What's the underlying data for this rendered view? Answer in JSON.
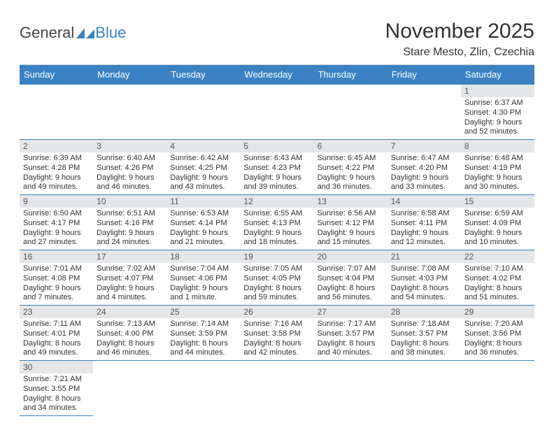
{
  "logo": {
    "word1": "General",
    "word2": "Blue"
  },
  "title": "November 2025",
  "location": "Stare Mesto, Zlin, Czechia",
  "header_bg": "#3b82c4",
  "row_divider_color": "#3b82c4",
  "daynum_bg": "#e4e6e8",
  "weekdays": [
    "Sunday",
    "Monday",
    "Tuesday",
    "Wednesday",
    "Thursday",
    "Friday",
    "Saturday"
  ],
  "weeks": [
    [
      null,
      null,
      null,
      null,
      null,
      null,
      {
        "n": "1",
        "sr": "Sunrise: 6:37 AM",
        "ss": "Sunset: 4:30 PM",
        "dl": "Daylight: 9 hours and 52 minutes."
      }
    ],
    [
      {
        "n": "2",
        "sr": "Sunrise: 6:39 AM",
        "ss": "Sunset: 4:28 PM",
        "dl": "Daylight: 9 hours and 49 minutes."
      },
      {
        "n": "3",
        "sr": "Sunrise: 6:40 AM",
        "ss": "Sunset: 4:26 PM",
        "dl": "Daylight: 9 hours and 46 minutes."
      },
      {
        "n": "4",
        "sr": "Sunrise: 6:42 AM",
        "ss": "Sunset: 4:25 PM",
        "dl": "Daylight: 9 hours and 43 minutes."
      },
      {
        "n": "5",
        "sr": "Sunrise: 6:43 AM",
        "ss": "Sunset: 4:23 PM",
        "dl": "Daylight: 9 hours and 39 minutes."
      },
      {
        "n": "6",
        "sr": "Sunrise: 6:45 AM",
        "ss": "Sunset: 4:22 PM",
        "dl": "Daylight: 9 hours and 36 minutes."
      },
      {
        "n": "7",
        "sr": "Sunrise: 6:47 AM",
        "ss": "Sunset: 4:20 PM",
        "dl": "Daylight: 9 hours and 33 minutes."
      },
      {
        "n": "8",
        "sr": "Sunrise: 6:48 AM",
        "ss": "Sunset: 4:19 PM",
        "dl": "Daylight: 9 hours and 30 minutes."
      }
    ],
    [
      {
        "n": "9",
        "sr": "Sunrise: 6:50 AM",
        "ss": "Sunset: 4:17 PM",
        "dl": "Daylight: 9 hours and 27 minutes."
      },
      {
        "n": "10",
        "sr": "Sunrise: 6:51 AM",
        "ss": "Sunset: 4:16 PM",
        "dl": "Daylight: 9 hours and 24 minutes."
      },
      {
        "n": "11",
        "sr": "Sunrise: 6:53 AM",
        "ss": "Sunset: 4:14 PM",
        "dl": "Daylight: 9 hours and 21 minutes."
      },
      {
        "n": "12",
        "sr": "Sunrise: 6:55 AM",
        "ss": "Sunset: 4:13 PM",
        "dl": "Daylight: 9 hours and 18 minutes."
      },
      {
        "n": "13",
        "sr": "Sunrise: 6:56 AM",
        "ss": "Sunset: 4:12 PM",
        "dl": "Daylight: 9 hours and 15 minutes."
      },
      {
        "n": "14",
        "sr": "Sunrise: 6:58 AM",
        "ss": "Sunset: 4:11 PM",
        "dl": "Daylight: 9 hours and 12 minutes."
      },
      {
        "n": "15",
        "sr": "Sunrise: 6:59 AM",
        "ss": "Sunset: 4:09 PM",
        "dl": "Daylight: 9 hours and 10 minutes."
      }
    ],
    [
      {
        "n": "16",
        "sr": "Sunrise: 7:01 AM",
        "ss": "Sunset: 4:08 PM",
        "dl": "Daylight: 9 hours and 7 minutes."
      },
      {
        "n": "17",
        "sr": "Sunrise: 7:02 AM",
        "ss": "Sunset: 4:07 PM",
        "dl": "Daylight: 9 hours and 4 minutes."
      },
      {
        "n": "18",
        "sr": "Sunrise: 7:04 AM",
        "ss": "Sunset: 4:06 PM",
        "dl": "Daylight: 9 hours and 1 minute."
      },
      {
        "n": "19",
        "sr": "Sunrise: 7:05 AM",
        "ss": "Sunset: 4:05 PM",
        "dl": "Daylight: 8 hours and 59 minutes."
      },
      {
        "n": "20",
        "sr": "Sunrise: 7:07 AM",
        "ss": "Sunset: 4:04 PM",
        "dl": "Daylight: 8 hours and 56 minutes."
      },
      {
        "n": "21",
        "sr": "Sunrise: 7:08 AM",
        "ss": "Sunset: 4:03 PM",
        "dl": "Daylight: 8 hours and 54 minutes."
      },
      {
        "n": "22",
        "sr": "Sunrise: 7:10 AM",
        "ss": "Sunset: 4:02 PM",
        "dl": "Daylight: 8 hours and 51 minutes."
      }
    ],
    [
      {
        "n": "23",
        "sr": "Sunrise: 7:11 AM",
        "ss": "Sunset: 4:01 PM",
        "dl": "Daylight: 8 hours and 49 minutes."
      },
      {
        "n": "24",
        "sr": "Sunrise: 7:13 AM",
        "ss": "Sunset: 4:00 PM",
        "dl": "Daylight: 8 hours and 46 minutes."
      },
      {
        "n": "25",
        "sr": "Sunrise: 7:14 AM",
        "ss": "Sunset: 3:59 PM",
        "dl": "Daylight: 8 hours and 44 minutes."
      },
      {
        "n": "26",
        "sr": "Sunrise: 7:16 AM",
        "ss": "Sunset: 3:58 PM",
        "dl": "Daylight: 8 hours and 42 minutes."
      },
      {
        "n": "27",
        "sr": "Sunrise: 7:17 AM",
        "ss": "Sunset: 3:57 PM",
        "dl": "Daylight: 8 hours and 40 minutes."
      },
      {
        "n": "28",
        "sr": "Sunrise: 7:18 AM",
        "ss": "Sunset: 3:57 PM",
        "dl": "Daylight: 8 hours and 38 minutes."
      },
      {
        "n": "29",
        "sr": "Sunrise: 7:20 AM",
        "ss": "Sunset: 3:56 PM",
        "dl": "Daylight: 8 hours and 36 minutes."
      }
    ],
    [
      {
        "n": "30",
        "sr": "Sunrise: 7:21 AM",
        "ss": "Sunset: 3:55 PM",
        "dl": "Daylight: 8 hours and 34 minutes."
      },
      null,
      null,
      null,
      null,
      null,
      null
    ]
  ]
}
